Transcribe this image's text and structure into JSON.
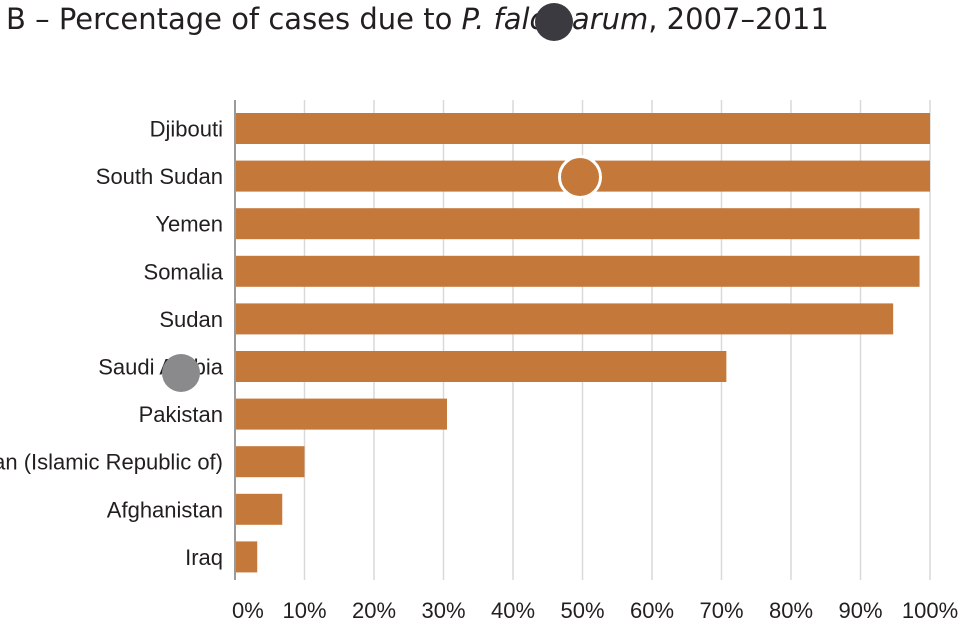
{
  "chart_data": {
    "type": "bar",
    "orientation": "horizontal",
    "title_prefix": "B – Percentage of cases due to ",
    "title_italic": "P. falciparum",
    "title_suffix": ", 2007–2011",
    "categories": [
      "Djibouti",
      "South Sudan",
      "Yemen",
      "Somalia",
      "Sudan",
      "Saudi Arabia",
      "Pakistan",
      "Iran (Islamic Republic of)",
      "Afghanistan",
      "Iraq"
    ],
    "values": [
      100,
      100,
      98.5,
      98.5,
      94.7,
      70.7,
      30.5,
      10,
      6.8,
      3.2
    ],
    "xlim": [
      0,
      100
    ],
    "xticks": [
      "0%",
      "10%",
      "20%",
      "30%",
      "40%",
      "50%",
      "60%",
      "70%",
      "80%",
      "90%",
      "100%"
    ],
    "grid": true,
    "colors": {
      "bar": "#c4783a",
      "grid": "#d9d9d9",
      "axis": "#9a9a9a",
      "text": "#231f20"
    }
  },
  "overlay": {
    "marker_colors": [
      "#3a3a40",
      "#c4783a",
      "#8a8a8c"
    ]
  }
}
